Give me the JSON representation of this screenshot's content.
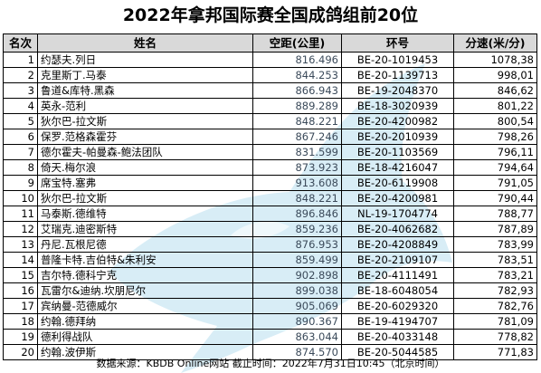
{
  "title": "2022年拿邦国际赛全国成鸽组前20位",
  "table": {
    "headers": [
      "名次",
      "姓名",
      "空距(公里)",
      "环号",
      "分速(米/分)"
    ],
    "rows": [
      [
        "1",
        "约瑟夫.列日",
        "816.496",
        "BE-20-1019453",
        "1078,38"
      ],
      [
        "2",
        "克里斯丁.马泰",
        "844.253",
        "BE-20-1139713",
        "998,01"
      ],
      [
        "3",
        "鲁道&库特.黑森",
        "866.943",
        "BE-19-2048370",
        "846,62"
      ],
      [
        "4",
        "英永-范利",
        "889.289",
        "BE-18-3020939",
        "801,22"
      ],
      [
        "5",
        "狄尔巴-拉文斯",
        "848.221",
        "BE-20-4200982",
        "800,54"
      ],
      [
        "6",
        "保罗.范格森霍芬",
        "867.246",
        "BE-20-2010939",
        "798,26"
      ],
      [
        "7",
        "德尔霍夫-帕曼森-鲍法团队",
        "831.599",
        "BE-20-1103569",
        "796,11"
      ],
      [
        "8",
        "倚天.梅尔浪",
        "873.923",
        "BE-18-4216047",
        "794,64"
      ],
      [
        "9",
        "席宝特.塞弗",
        "913.608",
        "BE-20-6119908",
        "791,05"
      ],
      [
        "10",
        "狄尔巴-拉文斯",
        "848.221",
        "BE-20-4200981",
        "790,44"
      ],
      [
        "11",
        "马泰斯.德维特",
        "896.846",
        "NL-19-1704774",
        "788,77"
      ],
      [
        "12",
        "艾瑞克.迪密斯特",
        "859.236",
        "BE-20-4062682",
        "787,89"
      ],
      [
        "13",
        "丹尼.瓦根尼德",
        "876.953",
        "BE-20-4208849",
        "783,99"
      ],
      [
        "14",
        "普隆卡特.吉伯特&朱利安",
        "859.499",
        "BE-20-2109107",
        "783,51"
      ],
      [
        "15",
        "吉尔特.德科宁克",
        "902.898",
        "BE-20-4111491",
        "783,21"
      ],
      [
        "16",
        "瓦雷尔&迪纳.坎朋尼尔",
        "899.038",
        "BE-18-6048054",
        "782,93"
      ],
      [
        "17",
        "宾纳曼-范德威尔",
        "905.069",
        "BE-20-6029320",
        "782,76"
      ],
      [
        "18",
        "约翰.德拜纳",
        "890.367",
        "BE-19-4194707",
        "781,09"
      ],
      [
        "19",
        "德利得战队",
        "863.044",
        "BE-20-4033148",
        "778,82"
      ],
      [
        "20",
        "约翰.波伊斯",
        "874.570",
        "BE-20-5044585",
        "771,83"
      ]
    ]
  },
  "footer": "数据来源：KBDB Online网站  截止时间：2022年7月31日10:45（北京时间）"
}
